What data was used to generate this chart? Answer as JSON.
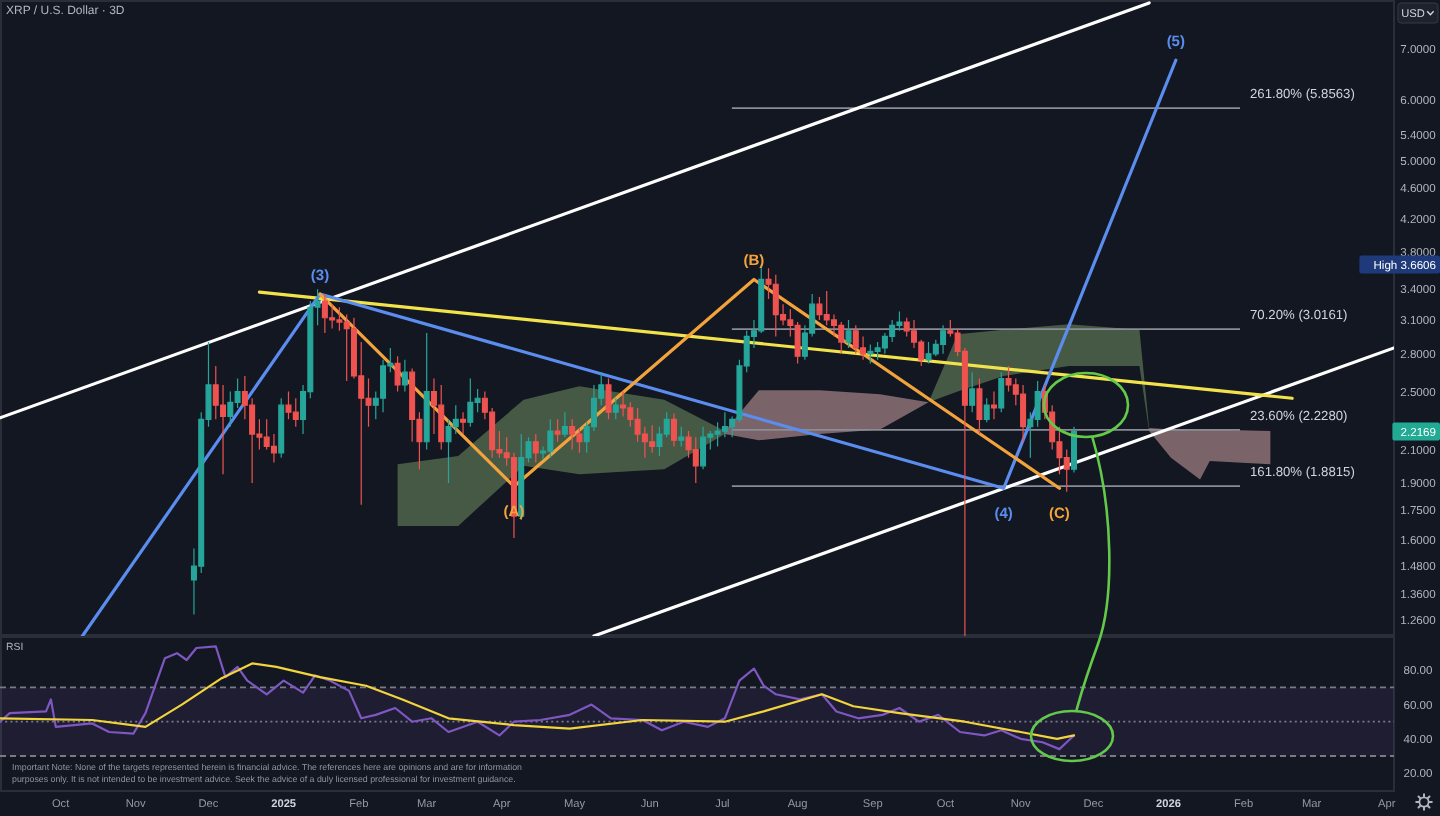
{
  "chart_data": [
    {
      "type": "candlestick",
      "title": "XRP / U.S. Dollar · 3D",
      "ylabel": "USD",
      "log": true,
      "tick_labels": "y",
      "xlim": [
        "2024-09-06",
        "2026-04-04"
      ],
      "ylim": [
        1.2,
        8.1
      ],
      "yticks": [
        {
          "value": 7,
          "label": "7.0000"
        },
        {
          "value": 6,
          "label": "6.0000"
        },
        {
          "value": 5.4,
          "label": "5.4000"
        },
        {
          "value": 5,
          "label": "5.0000"
        },
        {
          "value": 4.6,
          "label": "4.6000"
        },
        {
          "value": 4.2,
          "label": "4.2000"
        },
        {
          "value": 3.8,
          "label": "3.8000"
        },
        {
          "value": 3.6606,
          "label": "High 3.6606"
        },
        {
          "value": 3.4,
          "label": "3.4000"
        },
        {
          "value": 3.1,
          "label": "3.1000"
        },
        {
          "value": 2.8,
          "label": "2.8000"
        },
        {
          "value": 2.5,
          "label": "2.5000"
        },
        {
          "value": 2.2169,
          "label": "2.2169"
        },
        {
          "value": 2.1,
          "label": "2.1000"
        },
        {
          "value": 1.9,
          "label": "1.9000"
        },
        {
          "value": 1.75,
          "label": "1.7500"
        },
        {
          "value": 1.6,
          "label": "1.6000"
        },
        {
          "value": 1.48,
          "label": "1.4800"
        },
        {
          "value": 1.36,
          "label": "1.3600"
        },
        {
          "value": 1.26,
          "label": "1.2600"
        }
      ],
      "x": [
        "2024-11-25",
        "2024-11-28",
        "2024-12-01",
        "2024-12-04",
        "2024-12-07",
        "2024-12-10",
        "2024-12-13",
        "2024-12-16",
        "2024-12-19",
        "2024-12-22",
        "2024-12-25",
        "2024-12-28",
        "2024-12-31",
        "2025-01-03",
        "2025-01-06",
        "2025-01-09",
        "2025-01-12",
        "2025-01-15",
        "2025-01-18",
        "2025-01-21",
        "2025-01-24",
        "2025-01-27",
        "2025-01-30",
        "2025-02-02",
        "2025-02-05",
        "2025-02-08",
        "2025-02-11",
        "2025-02-14",
        "2025-02-17",
        "2025-02-20",
        "2025-02-23",
        "2025-02-26",
        "2025-03-01",
        "2025-03-04",
        "2025-03-07",
        "2025-03-10",
        "2025-03-13",
        "2025-03-16",
        "2025-03-19",
        "2025-03-22",
        "2025-03-25",
        "2025-03-28",
        "2025-03-31",
        "2025-04-03",
        "2025-04-06",
        "2025-04-09",
        "2025-04-12",
        "2025-04-15",
        "2025-04-18",
        "2025-04-21",
        "2025-04-24",
        "2025-04-27",
        "2025-04-30",
        "2025-05-03",
        "2025-05-06",
        "2025-05-09",
        "2025-05-12",
        "2025-05-15",
        "2025-05-18",
        "2025-05-21",
        "2025-05-24",
        "2025-05-27",
        "2025-05-30",
        "2025-06-02",
        "2025-06-05",
        "2025-06-08",
        "2025-06-11",
        "2025-06-14",
        "2025-06-17",
        "2025-06-20",
        "2025-06-23",
        "2025-06-26",
        "2025-06-29",
        "2025-07-02",
        "2025-07-05",
        "2025-07-08",
        "2025-07-11",
        "2025-07-14",
        "2025-07-17",
        "2025-07-20",
        "2025-07-23",
        "2025-07-26",
        "2025-07-29",
        "2025-08-01",
        "2025-08-04",
        "2025-08-07",
        "2025-08-10",
        "2025-08-13",
        "2025-08-16",
        "2025-08-19",
        "2025-08-22",
        "2025-08-25",
        "2025-08-28",
        "2025-08-31",
        "2025-09-03",
        "2025-09-06",
        "2025-09-09",
        "2025-09-12",
        "2025-09-15",
        "2025-09-18",
        "2025-09-21",
        "2025-09-24",
        "2025-09-27",
        "2025-09-30",
        "2025-10-03",
        "2025-10-06",
        "2025-10-09",
        "2025-10-12",
        "2025-10-15",
        "2025-10-18",
        "2025-10-21",
        "2025-10-24",
        "2025-10-27",
        "2025-10-30",
        "2025-11-02",
        "2025-11-05",
        "2025-11-08",
        "2025-11-11",
        "2025-11-14",
        "2025-11-17",
        "2025-11-20",
        "2025-11-23"
      ],
      "ohlc": [
        [
          1.42,
          1.56,
          1.28,
          1.48
        ],
        [
          1.48,
          2.35,
          1.45,
          2.3
        ],
        [
          2.3,
          2.9,
          2.25,
          2.55
        ],
        [
          2.55,
          2.7,
          2.3,
          2.4
        ],
        [
          2.4,
          2.55,
          1.95,
          2.32
        ],
        [
          2.32,
          2.5,
          2.25,
          2.42
        ],
        [
          2.42,
          2.6,
          2.38,
          2.5
        ],
        [
          2.5,
          2.62,
          2.3,
          2.4
        ],
        [
          2.4,
          2.45,
          1.9,
          2.2
        ],
        [
          2.2,
          2.3,
          2.1,
          2.18
        ],
        [
          2.18,
          2.3,
          2.1,
          2.12
        ],
        [
          2.12,
          2.2,
          2.02,
          2.08
        ],
        [
          2.08,
          2.45,
          2.05,
          2.4
        ],
        [
          2.4,
          2.5,
          2.3,
          2.35
        ],
        [
          2.35,
          2.45,
          2.25,
          2.3
        ],
        [
          2.3,
          2.55,
          2.2,
          2.5
        ],
        [
          2.5,
          3.28,
          2.45,
          3.22
        ],
        [
          3.22,
          3.4,
          3.05,
          3.28
        ],
        [
          3.28,
          3.35,
          2.98,
          3.12
        ],
        [
          3.12,
          3.25,
          3.02,
          3.1
        ],
        [
          3.1,
          3.22,
          3.0,
          3.08
        ],
        [
          3.08,
          3.15,
          2.58,
          3.02
        ],
        [
          3.02,
          3.12,
          2.6,
          2.62
        ],
        [
          2.62,
          2.9,
          1.78,
          2.45
        ],
        [
          2.45,
          2.6,
          2.25,
          2.4
        ],
        [
          2.4,
          2.5,
          2.3,
          2.45
        ],
        [
          2.45,
          2.75,
          2.35,
          2.7
        ],
        [
          2.7,
          2.85,
          2.65,
          2.72
        ],
        [
          2.72,
          2.78,
          2.5,
          2.55
        ],
        [
          2.55,
          2.75,
          2.5,
          2.65
        ],
        [
          2.65,
          2.68,
          2.15,
          2.3
        ],
        [
          2.3,
          2.35,
          1.98,
          2.15
        ],
        [
          2.15,
          2.98,
          2.1,
          2.5
        ],
        [
          2.5,
          2.6,
          2.2,
          2.4
        ],
        [
          2.4,
          2.55,
          2.1,
          2.15
        ],
        [
          2.15,
          2.3,
          1.9,
          2.25
        ],
        [
          2.25,
          2.4,
          2.2,
          2.3
        ],
        [
          2.3,
          2.35,
          2.2,
          2.28
        ],
        [
          2.28,
          2.6,
          2.25,
          2.42
        ],
        [
          2.42,
          2.52,
          2.35,
          2.45
        ],
        [
          2.45,
          2.5,
          2.3,
          2.35
        ],
        [
          2.35,
          2.38,
          2.05,
          2.1
        ],
        [
          2.1,
          2.22,
          2.05,
          2.08
        ],
        [
          2.08,
          2.18,
          2.0,
          2.05
        ],
        [
          2.05,
          2.08,
          1.61,
          1.72
        ],
        [
          1.72,
          2.2,
          1.7,
          2.05
        ],
        [
          2.05,
          2.18,
          2.02,
          2.15
        ],
        [
          2.15,
          2.2,
          2.02,
          2.08
        ],
        [
          2.08,
          2.12,
          2.04,
          2.09
        ],
        [
          2.09,
          2.3,
          2.05,
          2.22
        ],
        [
          2.22,
          2.3,
          2.15,
          2.2
        ],
        [
          2.2,
          2.35,
          2.18,
          2.25
        ],
        [
          2.25,
          2.3,
          2.1,
          2.2
        ],
        [
          2.2,
          2.24,
          2.08,
          2.15
        ],
        [
          2.15,
          2.28,
          2.08,
          2.25
        ],
        [
          2.25,
          2.55,
          2.22,
          2.45
        ],
        [
          2.45,
          2.65,
          2.4,
          2.55
        ],
        [
          2.55,
          2.6,
          2.3,
          2.35
        ],
        [
          2.35,
          2.45,
          2.3,
          2.4
        ],
        [
          2.4,
          2.5,
          2.32,
          2.38
        ],
        [
          2.38,
          2.42,
          2.25,
          2.3
        ],
        [
          2.3,
          2.38,
          2.15,
          2.2
        ],
        [
          2.2,
          2.25,
          2.05,
          2.15
        ],
        [
          2.15,
          2.26,
          2.08,
          2.12
        ],
        [
          2.12,
          2.25,
          2.06,
          2.2
        ],
        [
          2.2,
          2.35,
          2.18,
          2.3
        ],
        [
          2.3,
          2.34,
          2.12,
          2.16
        ],
        [
          2.16,
          2.25,
          2.12,
          2.18
        ],
        [
          2.18,
          2.22,
          2.05,
          2.1
        ],
        [
          2.1,
          2.18,
          1.9,
          2.0
        ],
        [
          2.0,
          2.25,
          1.98,
          2.18
        ],
        [
          2.18,
          2.22,
          2.1,
          2.2
        ],
        [
          2.2,
          2.28,
          2.12,
          2.22
        ],
        [
          2.22,
          2.35,
          2.18,
          2.25
        ],
        [
          2.25,
          2.32,
          2.18,
          2.3
        ],
        [
          2.3,
          2.75,
          2.28,
          2.7
        ],
        [
          2.7,
          3.0,
          2.65,
          2.95
        ],
        [
          2.95,
          3.1,
          2.85,
          3.0
        ],
        [
          3.0,
          3.6606,
          2.98,
          3.5
        ],
        [
          3.5,
          3.62,
          3.3,
          3.45
        ],
        [
          3.45,
          3.55,
          2.95,
          3.15
        ],
        [
          3.15,
          3.25,
          3.05,
          3.1
        ],
        [
          3.1,
          3.2,
          2.95,
          3.05
        ],
        [
          3.05,
          3.08,
          2.72,
          2.78
        ],
        [
          2.78,
          3.05,
          2.75,
          2.98
        ],
        [
          2.98,
          3.35,
          2.95,
          3.25
        ],
        [
          3.25,
          3.32,
          3.1,
          3.15
        ],
        [
          3.15,
          3.38,
          3.05,
          3.1
        ],
        [
          3.1,
          3.15,
          2.95,
          3.05
        ],
        [
          3.05,
          3.08,
          2.8,
          2.9
        ],
        [
          2.9,
          3.1,
          2.85,
          3.0
        ],
        [
          3.0,
          3.05,
          2.8,
          2.85
        ],
        [
          2.85,
          2.95,
          2.75,
          2.8
        ],
        [
          2.8,
          2.88,
          2.72,
          2.82
        ],
        [
          2.82,
          2.9,
          2.75,
          2.85
        ],
        [
          2.85,
          2.98,
          2.8,
          2.95
        ],
        [
          2.95,
          3.1,
          2.9,
          3.05
        ],
        [
          3.05,
          3.18,
          3.0,
          3.08
        ],
        [
          3.08,
          3.12,
          2.95,
          3.0
        ],
        [
          3.0,
          3.1,
          2.85,
          2.9
        ],
        [
          2.9,
          2.92,
          2.7,
          2.75
        ],
        [
          2.75,
          2.9,
          2.72,
          2.8
        ],
        [
          2.8,
          2.92,
          2.78,
          2.88
        ],
        [
          2.88,
          3.05,
          2.8,
          3.0
        ],
        [
          3.0,
          3.1,
          2.95,
          2.98
        ],
        [
          2.98,
          3.02,
          2.78,
          2.82
        ],
        [
          2.82,
          2.85,
          1.2,
          2.4
        ],
        [
          2.4,
          2.65,
          2.35,
          2.52
        ],
        [
          2.52,
          2.6,
          2.2,
          2.3
        ],
        [
          2.3,
          2.45,
          2.28,
          2.4
        ],
        [
          2.4,
          2.5,
          2.3,
          2.38
        ],
        [
          2.38,
          2.65,
          2.35,
          2.6
        ],
        [
          2.6,
          2.7,
          2.5,
          2.55
        ],
        [
          2.55,
          2.6,
          2.4,
          2.48
        ],
        [
          2.48,
          2.55,
          2.15,
          2.25
        ],
        [
          2.25,
          2.35,
          2.05,
          2.3
        ],
        [
          2.3,
          2.58,
          2.25,
          2.5
        ],
        [
          2.5,
          2.55,
          2.3,
          2.35
        ],
        [
          2.35,
          2.4,
          2.1,
          2.15
        ],
        [
          2.15,
          2.25,
          1.95,
          2.05
        ],
        [
          2.05,
          2.1,
          1.85,
          1.98
        ],
        [
          1.98,
          2.25,
          1.96,
          2.2169
        ]
      ],
      "colors": [
        "#26a69a",
        "#26a69a",
        "#26a69a",
        "#ef5350",
        "#ef5350",
        "#26a69a",
        "#26a69a",
        "#ef5350",
        "#ef5350",
        "#ef5350",
        "#ef5350",
        "#ef5350",
        "#26a69a",
        "#ef5350",
        "#ef5350",
        "#26a69a",
        "#26a69a",
        "#26a69a",
        "#ef5350",
        "#ef5350",
        "#ef5350",
        "#ef5350",
        "#ef5350",
        "#ef5350",
        "#ef5350",
        "#26a69a",
        "#26a69a",
        "#26a69a",
        "#ef5350",
        "#26a69a",
        "#ef5350",
        "#ef5350",
        "#26a69a",
        "#ef5350",
        "#ef5350",
        "#26a69a",
        "#26a69a",
        "#ef5350",
        "#26a69a",
        "#26a69a",
        "#ef5350",
        "#ef5350",
        "#ef5350",
        "#ef5350",
        "#ef5350",
        "#26a69a",
        "#26a69a",
        "#ef5350",
        "#26a69a",
        "#26a69a",
        "#ef5350",
        "#26a69a",
        "#ef5350",
        "#ef5350",
        "#26a69a",
        "#26a69a",
        "#26a69a",
        "#ef5350",
        "#26a69a",
        "#ef5350",
        "#ef5350",
        "#ef5350",
        "#ef5350",
        "#ef5350",
        "#26a69a",
        "#26a69a",
        "#ef5350",
        "#26a69a",
        "#ef5350",
        "#ef5350",
        "#26a69a",
        "#26a69a",
        "#26a69a",
        "#26a69a",
        "#26a69a",
        "#26a69a",
        "#26a69a",
        "#26a69a",
        "#26a69a",
        "#ef5350",
        "#ef5350",
        "#ef5350",
        "#ef5350",
        "#ef5350",
        "#26a69a",
        "#26a69a",
        "#ef5350",
        "#ef5350",
        "#ef5350",
        "#ef5350",
        "#26a69a",
        "#ef5350",
        "#ef5350",
        "#26a69a",
        "#26a69a",
        "#26a69a",
        "#26a69a",
        "#26a69a",
        "#ef5350",
        "#ef5350",
        "#ef5350",
        "#26a69a",
        "#26a69a",
        "#26a69a",
        "#ef5350",
        "#ef5350",
        "#ef5350",
        "#26a69a",
        "#ef5350",
        "#26a69a",
        "#ef5350",
        "#26a69a",
        "#ef5350",
        "#ef5350",
        "#ef5350",
        "#26a69a",
        "#26a69a",
        "#ef5350",
        "#ef5350",
        "#ef5350",
        "#ef5350",
        "#26a69a"
      ],
      "series": [
        {
          "type": "line",
          "color": "#50654b",
          "x": [
            "2025-02-17",
            "2025-03-14",
            "2025-04-10",
            "2025-05-03",
            "2025-06-07",
            "2025-07-02",
            "2025-07-03",
            "2025-09-24",
            "2025-10-06",
            "2025-10-25",
            "2025-11-21",
            "2025-12-20",
            "2025-12-24"
          ],
          "values": [
            null,
            null,
            null,
            null,
            null,
            null,
            null,
            null,
            null,
            null,
            null,
            null,
            null
          ],
          "upper": [
            2.01,
            2.06,
            2.44,
            2.54,
            2.44,
            2.22,
            null,
            2.42,
            2.97,
            3.01,
            3.06,
            3.01,
            2.24
          ],
          "lower": [
            1.67,
            1.67,
            2.0,
            1.95,
            1.98,
            2.2,
            null,
            2.42,
            2.5,
            2.62,
            2.7,
            2.7,
            2.22
          ]
        },
        {
          "type": "line",
          "color": "#8d7276",
          "x": [
            "2025-07-02",
            "2025-07-16",
            "2025-08-10",
            "2025-09-04",
            "2025-09-24",
            "2025-09-25",
            "2025-12-24",
            "2026-01-02",
            "2026-01-14",
            "2026-01-18",
            "2026-02-12"
          ],
          "values": [
            null,
            null,
            null,
            null,
            null,
            null,
            null,
            null,
            null,
            null,
            null
          ],
          "upper": [
            2.22,
            2.51,
            2.51,
            2.48,
            2.42,
            null,
            2.24,
            2.23,
            2.23,
            2.23,
            2.22
          ],
          "lower": [
            2.2,
            2.16,
            2.2,
            2.23,
            2.42,
            null,
            2.22,
            2.05,
            1.92,
            2.03,
            2.01
          ]
        },
        {
          "type": "line",
          "color": "#ffffff",
          "x": [
            "2024-09-06",
            "2025-12-24"
          ],
          "values": [
            2.31,
            8.03
          ]
        },
        {
          "type": "line",
          "color": "#ffffff",
          "x": [
            "2025-05-09",
            "2026-04-04"
          ],
          "values": [
            1.2,
            2.85
          ]
        },
        {
          "type": "line",
          "color": "#f2e34c",
          "x": [
            "2024-12-22",
            "2026-02-21"
          ],
          "values": [
            3.37,
            2.45
          ]
        },
        {
          "type": "line",
          "color": "#5b8def",
          "x": [
            "2024-10-10",
            "2025-01-16",
            "2025-10-25",
            "2026-01-04"
          ],
          "values": [
            1.2,
            3.35,
            1.87,
            6.76
          ]
        },
        {
          "type": "line",
          "color": "#f3a33c",
          "x": [
            "2025-01-16",
            "2025-04-06",
            "2025-07-14",
            "2025-11-17"
          ],
          "values": [
            3.35,
            1.88,
            3.5,
            1.87
          ]
        }
      ],
      "ref_lines": [
        {
          "axis": "y",
          "value": 5.8563,
          "label": "261.80% (5.8563)",
          "color": "#8a8d96"
        },
        {
          "axis": "y",
          "value": 3.0161,
          "label": "70.20% (3.0161)",
          "color": "#8a8d96"
        },
        {
          "axis": "y",
          "value": 2.228,
          "label": "23.60% (2.2280)",
          "color": "#8a8d96"
        },
        {
          "axis": "y",
          "value": 1.8815,
          "label": "161.80% (1.8815)",
          "color": "#8a8d96"
        }
      ],
      "annotations": [
        {
          "text": "(3)",
          "x": "2025-01-16",
          "y": 3.35
        },
        {
          "text": "(A)",
          "x": "2025-04-06",
          "y": 1.88
        },
        {
          "text": "(B)",
          "x": "2025-07-14",
          "y": 3.5
        },
        {
          "text": "(4)",
          "x": "2025-10-25",
          "y": 1.87
        },
        {
          "text": "(C)",
          "x": "2025-11-17",
          "y": 1.87
        },
        {
          "text": "(5)",
          "x": "2026-01-04",
          "y": 6.76
        }
      ]
    },
    {
      "type": "line",
      "title": "RSI",
      "xlim": [
        "2024-09-06",
        "2026-04-04"
      ],
      "xticks": [
        {
          "value": "2024-10-01",
          "label": "Oct"
        },
        {
          "value": "2024-11-01",
          "label": "Nov"
        },
        {
          "value": "2024-12-01",
          "label": "Dec"
        },
        {
          "value": "2025-01-01",
          "label": "2025"
        },
        {
          "value": "2025-02-01",
          "label": "Feb"
        },
        {
          "value": "2025-03-01",
          "label": "Mar"
        },
        {
          "value": "2025-04-01",
          "label": "Apr"
        },
        {
          "value": "2025-05-01",
          "label": "May"
        },
        {
          "value": "2025-06-01",
          "label": "Jun"
        },
        {
          "value": "2025-07-01",
          "label": "Jul"
        },
        {
          "value": "2025-08-01",
          "label": "Aug"
        },
        {
          "value": "2025-09-01",
          "label": "Sep"
        },
        {
          "value": "2025-10-01",
          "label": "Oct"
        },
        {
          "value": "2025-11-01",
          "label": "Nov"
        },
        {
          "value": "2025-12-01",
          "label": "Dec"
        },
        {
          "value": "2026-01-01",
          "label": "2026"
        },
        {
          "value": "2026-02-01",
          "label": "Feb"
        },
        {
          "value": "2026-03-01",
          "label": "Mar"
        },
        {
          "value": "2026-04-01",
          "label": "Apr"
        }
      ],
      "ylim": [
        9,
        100
      ],
      "yticks": [
        {
          "value": 20,
          "label": "20.00"
        },
        {
          "value": 40,
          "label": "40.00"
        },
        {
          "value": 60,
          "label": "60.00"
        },
        {
          "value": 80,
          "label": "80.00"
        }
      ],
      "series": [
        {
          "color": "#7e57c2",
          "x": [
            "2024-09-06",
            "2024-09-10",
            "2024-09-25",
            "2024-09-27",
            "2024-09-29",
            "2024-10-14",
            "2024-10-21",
            "2024-10-31",
            "2024-11-05",
            "2024-11-13",
            "2024-11-18",
            "2024-11-22",
            "2024-11-26",
            "2024-12-04",
            "2024-12-08",
            "2024-12-13",
            "2024-12-17",
            "2024-12-25",
            "2025-01-01",
            "2025-01-09",
            "2025-01-14",
            "2025-01-20",
            "2025-01-28",
            "2025-02-02",
            "2025-02-08",
            "2025-02-16",
            "2025-02-23",
            "2025-03-03",
            "2025-03-10",
            "2025-03-22",
            "2025-03-31",
            "2025-04-06",
            "2025-04-17",
            "2025-04-29",
            "2025-05-08",
            "2025-05-16",
            "2025-05-29",
            "2025-06-06",
            "2025-06-15",
            "2025-06-25",
            "2025-07-02",
            "2025-07-08",
            "2025-07-14",
            "2025-07-18",
            "2025-07-23",
            "2025-08-02",
            "2025-08-11",
            "2025-08-17",
            "2025-08-26",
            "2025-09-05",
            "2025-09-12",
            "2025-09-20",
            "2025-09-28",
            "2025-10-07",
            "2025-10-17",
            "2025-10-24",
            "2025-11-01",
            "2025-11-10",
            "2025-11-17",
            "2025-11-20",
            "2025-11-23"
          ],
          "values": [
            50,
            55,
            56,
            63,
            47,
            49,
            44,
            43,
            55,
            87,
            90,
            86,
            93,
            94,
            76,
            82,
            74,
            66,
            74,
            67,
            77,
            74,
            68,
            52,
            54,
            58,
            50,
            52,
            44,
            50,
            42,
            50,
            51,
            54,
            60,
            52,
            51,
            45,
            50,
            47,
            52,
            74,
            81,
            71,
            66,
            63,
            66,
            56,
            52,
            54,
            58,
            50,
            54,
            44,
            42,
            45,
            40,
            38,
            34,
            38,
            42
          ]
        },
        {
          "color": "#f2d43d",
          "x": [
            "2024-09-06",
            "2024-10-14",
            "2024-11-05",
            "2024-11-20",
            "2024-12-06",
            "2024-12-19",
            "2024-12-29",
            "2025-01-16",
            "2025-02-04",
            "2025-02-19",
            "2025-03-10",
            "2025-04-06",
            "2025-04-29",
            "2025-05-29",
            "2025-07-02",
            "2025-07-18",
            "2025-08-11",
            "2025-08-24",
            "2025-09-12",
            "2025-10-09",
            "2025-11-01",
            "2025-11-16",
            "2025-11-23"
          ],
          "values": [
            52,
            51,
            47,
            60,
            75,
            84,
            82,
            76,
            71,
            63,
            52,
            48,
            46,
            51,
            50,
            56,
            66,
            59,
            55,
            50,
            44,
            40,
            42
          ]
        }
      ],
      "ref_lines": [
        {
          "axis": "y",
          "value": 70,
          "color": "#787b86",
          "line_style": "dashed"
        },
        {
          "axis": "y",
          "value": 50,
          "color": "#787b86",
          "line_style": "dotted"
        },
        {
          "axis": "y",
          "value": 30,
          "color": "#787b86",
          "line_style": "dashed"
        }
      ],
      "bands": [
        {
          "axis": "y",
          "from": 30,
          "to": 70,
          "color": "#7e57c2"
        }
      ],
      "annotations": [
        "Important Note: None of the targets represented herein is financial advice. The references here are opinions and are for information purposes only. It is not intended to be investment advice. Seek the advice of a duly licensed professional for investment guidance."
      ]
    }
  ]
}
